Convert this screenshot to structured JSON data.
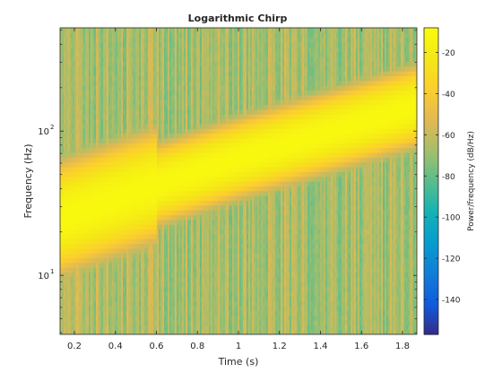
{
  "chart_data": {
    "type": "heatmap",
    "title": "Logarithmic Chirp",
    "xlabel": "Time (s)",
    "ylabel": "Frequency (Hz)",
    "colorbar_label": "Power/frequency (dB/Hz)",
    "x_scale": "linear",
    "y_scale": "log",
    "xlim": [
      0.13,
      1.87
    ],
    "ylim": [
      3.9,
      520
    ],
    "clim": [
      -157,
      -8
    ],
    "colormap": "parula",
    "x_ticks": [
      0.2,
      0.4,
      0.6,
      0.8,
      1,
      1.2,
      1.4,
      1.6,
      1.8
    ],
    "x_tick_labels": [
      "0.2",
      "0.4",
      "0.6",
      "0.8",
      "1",
      "1.2",
      "1.4",
      "1.6",
      "1.8"
    ],
    "y_ticks": [
      10,
      100
    ],
    "y_tick_base": "10",
    "y_tick_exps": [
      "1",
      "2"
    ],
    "colorbar_ticks": [
      -20,
      -40,
      -60,
      -80,
      -100,
      -120,
      -140
    ],
    "colorbar_tick_labels": [
      "-20",
      "-40",
      "-60",
      "-80",
      "-100",
      "-120",
      "-140"
    ],
    "chirp_ridge": {
      "time_s": [
        0.13,
        0.5,
        1.0,
        1.5,
        1.87
      ],
      "frequency_hz": [
        25,
        38,
        65,
        105,
        150
      ],
      "peak_power_db": -10
    },
    "background_power_db_range": [
      -90,
      -55
    ]
  }
}
